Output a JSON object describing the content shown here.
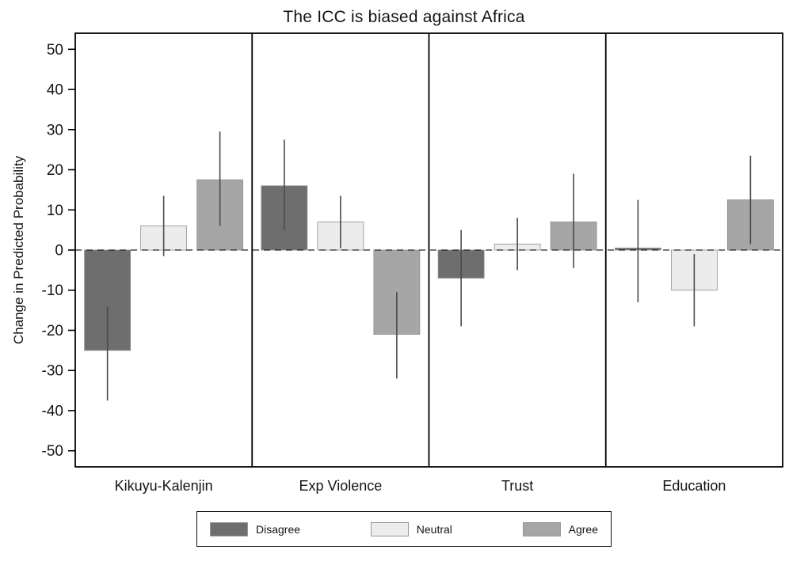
{
  "chart_data": {
    "type": "bar",
    "title": "The ICC is biased against Africa",
    "ylabel": "Change in Predicted Probability",
    "xlabel": "",
    "ylim": [
      -54,
      54
    ],
    "y_ticks": [
      50,
      40,
      30,
      20,
      10,
      0,
      -10,
      -20,
      -30,
      -40,
      -50
    ],
    "grid": false,
    "zero_line": "dashed",
    "legend_position": "bottom",
    "categories": [
      "Kikuyu-Kalenjin",
      "Exp Violence",
      "Trust",
      "Education"
    ],
    "series": [
      {
        "name": "Disagree",
        "color": "#6e6e6e",
        "values": [
          -25,
          16,
          -7,
          0.5
        ],
        "ci_low": [
          -37.5,
          5,
          -19,
          -13
        ],
        "ci_high": [
          -14,
          27.5,
          5,
          12.5
        ]
      },
      {
        "name": "Neutral",
        "color": "#ececec",
        "values": [
          6,
          7,
          1.5,
          -10
        ],
        "ci_low": [
          -1.5,
          0.5,
          -5,
          -19
        ],
        "ci_high": [
          13.5,
          13.5,
          8,
          -1
        ]
      },
      {
        "name": "Agree",
        "color": "#a6a6a6",
        "values": [
          17.5,
          -21,
          7,
          12.5
        ],
        "ci_low": [
          6,
          -32,
          -4.5,
          1.5
        ],
        "ci_high": [
          29.5,
          -10.5,
          19,
          23.5
        ]
      }
    ],
    "error_bar_color": "#4a4a4a",
    "axis_color": "#000000",
    "background_color": "#ffffff"
  }
}
